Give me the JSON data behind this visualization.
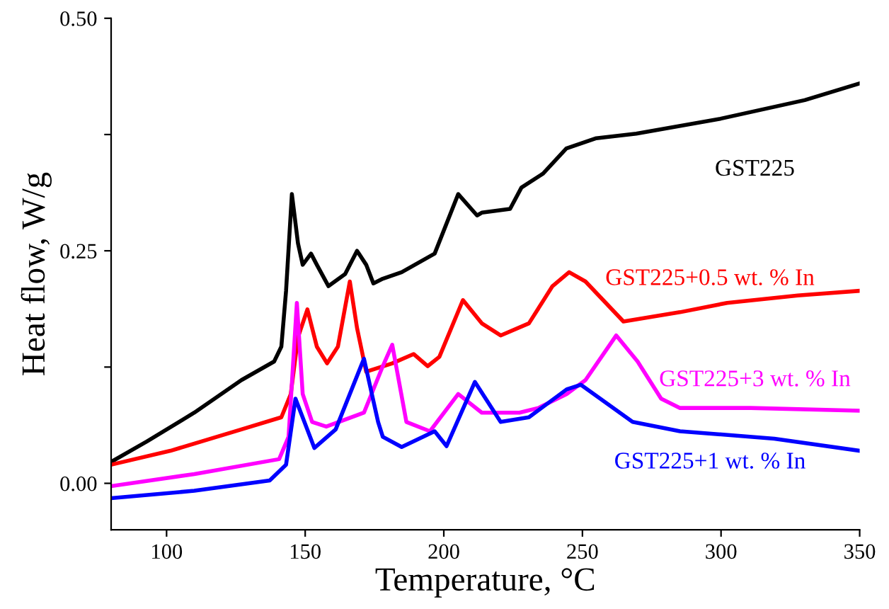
{
  "chart_data": {
    "type": "line",
    "xlabel": "Temperature, °C",
    "ylabel": "Heat flow, W/g",
    "xlim": [
      80,
      350
    ],
    "xticks": [
      100,
      150,
      200,
      250,
      300,
      350
    ],
    "ylim": [
      -0.05,
      0.5
    ],
    "yticks": [
      {
        "value": 0.0,
        "label": "0.00"
      },
      {
        "value": 0.125,
        "label": null
      },
      {
        "value": 0.25,
        "label": "0.25"
      },
      {
        "value": 0.375,
        "label": null
      },
      {
        "value": 0.5,
        "label": "0.50"
      }
    ],
    "marker": "none",
    "line_style": "solid",
    "grid": false,
    "legend": false,
    "series": [
      {
        "name": "GST225",
        "color": "#000000",
        "x": [
          80,
          92.9,
          110.0,
          127.0,
          138.8,
          141.4,
          143.1,
          145.2,
          147.4,
          149.1,
          152.1,
          154.2,
          158.4,
          164.4,
          168.7,
          172.0,
          174.6,
          178.0,
          184.8,
          196.7,
          205.2,
          212.0,
          213.7,
          223.9,
          228.0,
          235.8,
          244.2,
          255.0,
          269.4,
          299.8,
          330.2,
          350
        ],
        "values": [
          0.023,
          0.045,
          0.076,
          0.111,
          0.131,
          0.147,
          0.207,
          0.311,
          0.258,
          0.235,
          0.247,
          0.235,
          0.212,
          0.225,
          0.25,
          0.235,
          0.215,
          0.22,
          0.227,
          0.247,
          0.311,
          0.288,
          0.291,
          0.295,
          0.318,
          0.333,
          0.36,
          0.371,
          0.376,
          0.392,
          0.412,
          0.43
        ]
      },
      {
        "name": "GST225+0.5 wt. % In",
        "color": "#ff0000",
        "x": [
          80,
          101.4,
          127.0,
          141.4,
          144.8,
          147.4,
          150.8,
          154.2,
          157.9,
          161.8,
          166.1,
          168.7,
          172.0,
          181.4,
          189.1,
          194.2,
          198.4,
          206.9,
          213.7,
          220.5,
          230.7,
          239.2,
          245.2,
          251.1,
          264.8,
          285.2,
          302.2,
          327.7,
          350
        ],
        "values": [
          0.02,
          0.035,
          0.058,
          0.071,
          0.096,
          0.157,
          0.187,
          0.147,
          0.129,
          0.147,
          0.217,
          0.167,
          0.12,
          0.129,
          0.139,
          0.126,
          0.136,
          0.197,
          0.172,
          0.159,
          0.172,
          0.212,
          0.227,
          0.217,
          0.174,
          0.184,
          0.194,
          0.202,
          0.207
        ]
      },
      {
        "name": "GST225+3 wt. % In",
        "color": "#ff00ff",
        "x": [
          80,
          110,
          140.6,
          144,
          147,
          149.1,
          152.5,
          157.6,
          171.2,
          178,
          181.4,
          186.5,
          195,
          205.2,
          213.7,
          227.3,
          234.1,
          244.3,
          251.1,
          262.2,
          269.9,
          278.4,
          285.2,
          310.7,
          350
        ],
        "values": [
          -0.003,
          0.01,
          0.026,
          0.05,
          0.194,
          0.096,
          0.066,
          0.061,
          0.076,
          0.126,
          0.149,
          0.066,
          0.056,
          0.096,
          0.076,
          0.076,
          0.081,
          0.096,
          0.111,
          0.159,
          0.131,
          0.091,
          0.081,
          0.081,
          0.078
        ]
      },
      {
        "name": "GST225+1 wt. % In",
        "color": "#0000ff",
        "x": [
          80,
          110,
          137.2,
          143.1,
          146.5,
          153.3,
          161,
          171.2,
          176.3,
          178,
          184.8,
          196.7,
          201,
          211.2,
          220.5,
          230.7,
          244.3,
          249.4,
          268.1,
          285.2,
          319.2,
          350
        ],
        "values": [
          -0.016,
          -0.008,
          0.003,
          0.02,
          0.091,
          0.038,
          0.058,
          0.134,
          0.066,
          0.05,
          0.039,
          0.056,
          0.04,
          0.109,
          0.066,
          0.071,
          0.101,
          0.106,
          0.066,
          0.056,
          0.048,
          0.035
        ]
      }
    ]
  }
}
